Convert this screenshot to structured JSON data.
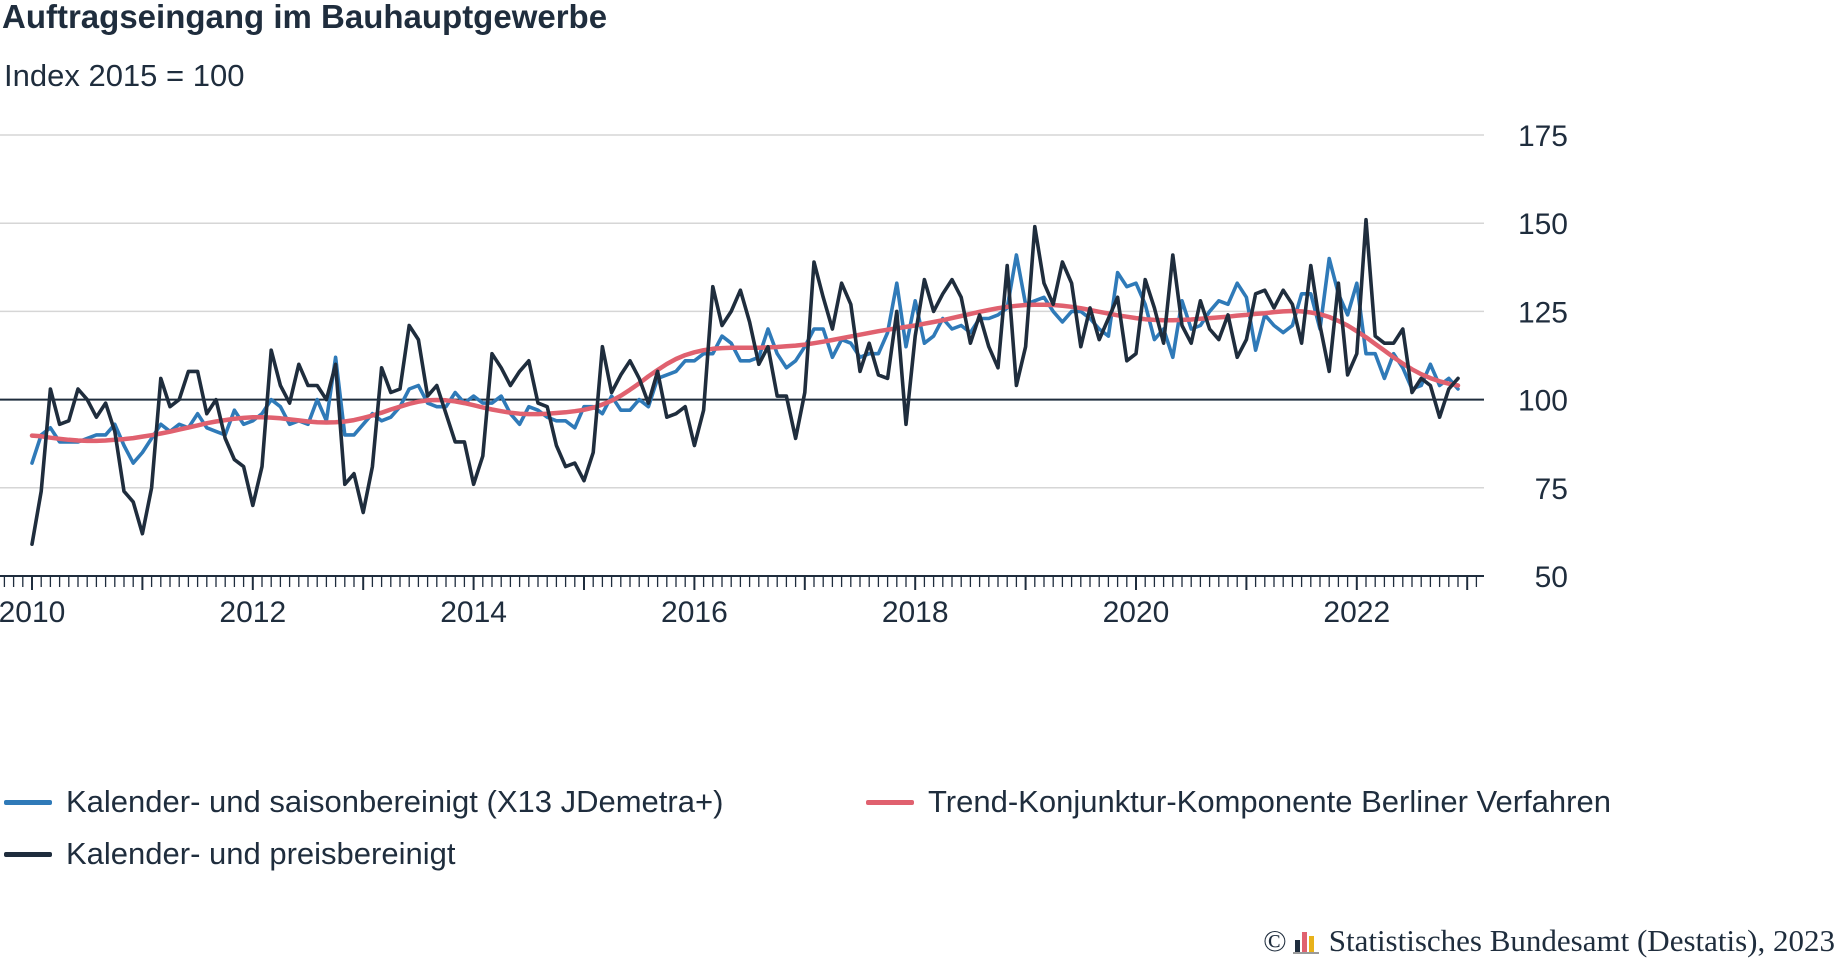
{
  "title": "Auftragseingang im Bauhauptgewerbe",
  "subtitle": "Index 2015 = 100",
  "credit": {
    "symbol": "©",
    "text": "Statistisches Bundesamt (Destatis), 2023",
    "logo": "destatis-bar-logo"
  },
  "colors": {
    "blue": "#2f7ab8",
    "dark": "#1f2d3d",
    "red": "#e0616f",
    "grid": "#d6d6d6",
    "ref": "#1f2d3d"
  },
  "chart_data": {
    "type": "line",
    "frequency": "monthly",
    "x_start": "2010-01",
    "x_end": "2022-12",
    "x_ticks": [
      "2010",
      "2012",
      "2014",
      "2016",
      "2018",
      "2020",
      "2022"
    ],
    "y_ticks": [
      "175",
      "150",
      "125",
      "100",
      "75",
      "50"
    ],
    "ylim": [
      50,
      175
    ],
    "y_axis_position": "right",
    "reference_line": 100,
    "grid": true,
    "legend_position": "bottom",
    "series": [
      {
        "name": "Kalender- und saisonbereinigt (X13 JDemetra+)",
        "color": "#2f7ab8",
        "values": [
          82,
          90,
          92,
          88,
          88,
          88,
          89,
          90,
          90,
          93,
          87,
          82,
          85,
          89,
          93,
          91,
          93,
          92,
          96,
          92,
          91,
          90,
          97,
          93,
          94,
          96,
          100,
          98,
          93,
          94,
          93,
          100,
          94,
          112,
          90,
          90,
          93,
          96,
          94,
          95,
          98,
          103,
          104,
          99,
          98,
          98,
          102,
          99,
          101,
          99,
          99,
          101,
          96,
          93,
          98,
          97,
          95,
          94,
          94,
          92,
          98,
          98,
          96,
          101,
          97,
          97,
          100,
          98,
          106,
          107,
          108,
          111,
          111,
          113,
          113,
          118,
          116,
          111,
          111,
          112,
          120,
          113,
          109,
          111,
          115,
          120,
          120,
          112,
          117,
          116,
          112,
          113,
          113,
          119,
          133,
          115,
          128,
          116,
          118,
          123,
          120,
          121,
          119,
          123,
          123,
          124,
          126,
          141,
          127,
          128,
          129,
          125,
          122,
          125,
          125,
          123,
          120,
          118,
          136,
          132,
          133,
          127,
          117,
          120,
          112,
          128,
          120,
          121,
          125,
          128,
          127,
          133,
          129,
          114,
          124,
          121,
          119,
          121,
          130,
          130,
          120,
          140,
          130,
          124,
          133,
          113,
          113,
          106,
          113,
          109,
          103,
          104,
          110,
          104,
          106,
          103
        ]
      },
      {
        "name": "Trend-Konjunktur-Komponente Berliner Verfahren",
        "color": "#e0616f",
        "values": [
          89.8,
          89.6,
          89.2,
          88.9,
          88.6,
          88.4,
          88.3,
          88.3,
          88.4,
          88.6,
          88.8,
          89.1,
          89.5,
          89.9,
          90.4,
          90.9,
          91.5,
          92.1,
          92.7,
          93.3,
          93.8,
          94.2,
          94.6,
          94.8,
          95.0,
          95.0,
          94.9,
          94.7,
          94.4,
          94.1,
          93.8,
          93.6,
          93.5,
          93.6,
          93.8,
          94.2,
          94.8,
          95.5,
          96.3,
          97.2,
          98.0,
          98.8,
          99.4,
          99.8,
          99.9,
          99.8,
          99.5,
          99.0,
          98.4,
          97.8,
          97.2,
          96.7,
          96.3,
          96.0,
          95.9,
          95.9,
          96.0,
          96.2,
          96.4,
          96.7,
          97.1,
          97.7,
          98.6,
          99.7,
          101.1,
          102.8,
          104.6,
          106.6,
          108.4,
          110.1,
          111.5,
          112.6,
          113.4,
          114.0,
          114.4,
          114.6,
          114.7,
          114.7,
          114.7,
          114.7,
          114.8,
          114.9,
          115.1,
          115.3,
          115.6,
          116.0,
          116.4,
          116.9,
          117.4,
          117.9,
          118.4,
          118.9,
          119.4,
          119.8,
          120.2,
          120.6,
          121.0,
          121.5,
          122.0,
          122.5,
          123.1,
          123.7,
          124.3,
          124.9,
          125.4,
          125.9,
          126.3,
          126.6,
          126.8,
          126.9,
          126.9,
          126.8,
          126.6,
          126.3,
          125.9,
          125.4,
          124.9,
          124.4,
          123.9,
          123.5,
          123.1,
          122.8,
          122.6,
          122.5,
          122.5,
          122.6,
          122.7,
          122.9,
          123.1,
          123.3,
          123.5,
          123.8,
          124.0,
          124.3,
          124.5,
          124.8,
          125.0,
          125.1,
          125.0,
          124.7,
          124.2,
          123.4,
          122.3,
          121.0,
          119.4,
          117.7,
          115.8,
          113.9,
          112.0,
          110.2,
          108.6,
          107.2,
          106.1,
          105.2,
          104.5,
          104.0
        ]
      },
      {
        "name": "Kalender- und preisbereinigt",
        "color": "#1f2d3d",
        "values": [
          59,
          74,
          103,
          93,
          94,
          103,
          100,
          95,
          99,
          91,
          74,
          71,
          62,
          75,
          106,
          98,
          100,
          108,
          108,
          96,
          100,
          89,
          83,
          81,
          70,
          81,
          114,
          104,
          99,
          110,
          104,
          104,
          100,
          110,
          76,
          79,
          68,
          81,
          109,
          102,
          103,
          121,
          117,
          101,
          104,
          96,
          88,
          88,
          76,
          84,
          113,
          109,
          104,
          108,
          111,
          99,
          98,
          87,
          81,
          82,
          77,
          85,
          115,
          102,
          107,
          111,
          106,
          99,
          108,
          95,
          96,
          98,
          87,
          97,
          132,
          121,
          125,
          131,
          122,
          110,
          115,
          101,
          101,
          89,
          102,
          139,
          129,
          120,
          133,
          127,
          108,
          116,
          107,
          106,
          125,
          93,
          118,
          134,
          125,
          130,
          134,
          129,
          116,
          124,
          115,
          109,
          138,
          104,
          115,
          149,
          133,
          127,
          139,
          133,
          115,
          126,
          117,
          123,
          129,
          111,
          113,
          134,
          126,
          116,
          141,
          121,
          116,
          128,
          120,
          117,
          124,
          112,
          117,
          130,
          131,
          126,
          131,
          127,
          116,
          138,
          121,
          108,
          133,
          107,
          113,
          151,
          118,
          116,
          116,
          120,
          102,
          106,
          104,
          95,
          103,
          106
        ]
      }
    ]
  }
}
